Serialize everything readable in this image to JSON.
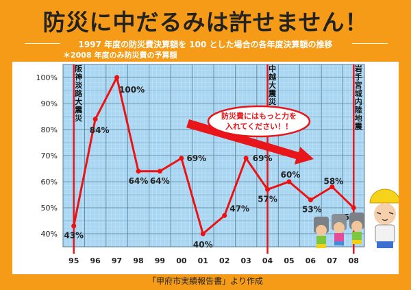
{
  "header": {
    "title": "防災に中だるみは許せません！",
    "subtitle": "1997 年度の防災費決算額を 100 とした場合の各年度決算額の推移",
    "note": "＊2008 年度のみ防災費の予算額"
  },
  "footer": {
    "source": "「甲府市実績報告書」より作成"
  },
  "callout": {
    "line1": "防災費にはもっと力を",
    "line2": "入れてください！！"
  },
  "chart_data": {
    "type": "line",
    "categories": [
      "95",
      "96",
      "97",
      "98",
      "99",
      "00",
      "01",
      "02",
      "03",
      "04",
      "05",
      "06",
      "07",
      "08"
    ],
    "values": [
      43,
      84,
      100,
      64,
      64,
      69,
      40,
      47,
      69,
      57,
      60,
      53,
      58,
      50
    ],
    "data_labels": [
      "43%",
      "84%",
      "100%",
      "64%",
      "64%",
      "69%",
      "40%",
      "47%",
      "69%",
      "57%",
      "60%",
      "53%",
      "58%",
      "50%"
    ],
    "y_ticks": [
      "40%",
      "50%",
      "60%",
      "70%",
      "80%",
      "90%",
      "100%"
    ],
    "ylim": [
      35,
      105
    ],
    "grid": true,
    "line_color": "#ee1111",
    "plot_background": "#a9d6f2",
    "events": [
      {
        "category": "95",
        "label": "阪神淡路大震災"
      },
      {
        "category": "04",
        "label": "中越大震災"
      },
      {
        "category": "08",
        "label": "岩手宮城内陸地震"
      }
    ]
  }
}
